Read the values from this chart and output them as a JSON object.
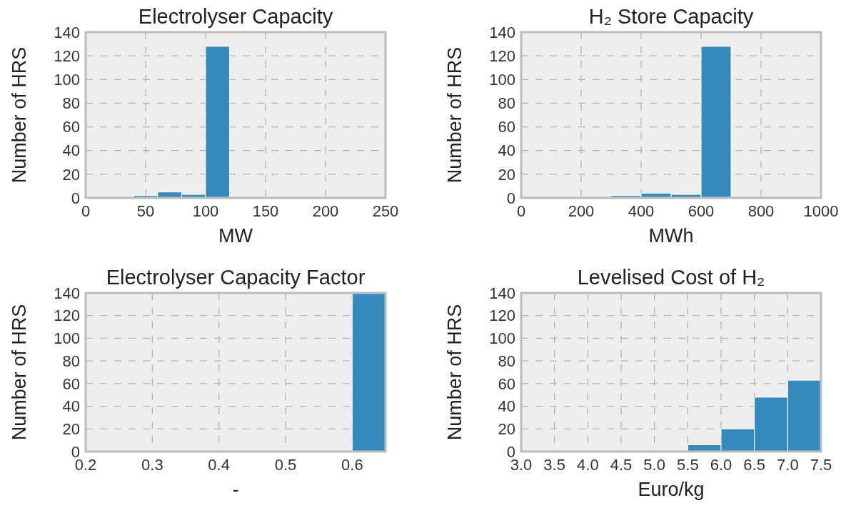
{
  "chart_data": [
    {
      "type": "histogram",
      "title": "Electrolyser Capacity",
      "xlabel": "MW",
      "ylabel": "Number of HRS",
      "bins": [
        40,
        60,
        80,
        100,
        120
      ],
      "values": [
        2,
        5,
        3,
        128
      ],
      "color": "#348abd",
      "xlim": [
        0,
        250
      ],
      "xticks": [
        0,
        50,
        100,
        150,
        200,
        250
      ],
      "ylim": [
        0,
        140
      ],
      "yticks": [
        0,
        20,
        40,
        60,
        80,
        100,
        120,
        140
      ],
      "grid": true
    },
    {
      "type": "histogram",
      "title": "H₂ Store Capacity",
      "xlabel": "MWh",
      "ylabel": "Number of HRS",
      "bins": [
        300,
        400,
        500,
        600,
        700
      ],
      "values": [
        2,
        4,
        3,
        128
      ],
      "color": "#348abd",
      "xlim": [
        0,
        1000
      ],
      "xticks": [
        0,
        200,
        400,
        600,
        800,
        1000
      ],
      "ylim": [
        0,
        140
      ],
      "yticks": [
        0,
        20,
        40,
        60,
        80,
        100,
        120,
        140
      ],
      "grid": true
    },
    {
      "type": "histogram",
      "title": "Electrolyser Capacity Factor",
      "xlabel": "-",
      "ylabel": "Number of HRS",
      "bins": [
        0.6,
        0.65
      ],
      "values": [
        140
      ],
      "color": "#348abd",
      "xlim": [
        0.2,
        0.65
      ],
      "xticks": [
        {
          "value": 0.2,
          "label": "0.2"
        },
        {
          "value": 0.3,
          "label": "0.3"
        },
        {
          "value": 0.4,
          "label": "0.4"
        },
        {
          "value": 0.5,
          "label": "0.5"
        },
        {
          "value": 0.6,
          "label": "0.6"
        }
      ],
      "ylim": [
        0,
        140
      ],
      "yticks": [
        0,
        20,
        40,
        60,
        80,
        100,
        120,
        140
      ],
      "grid": true
    },
    {
      "type": "histogram",
      "title": "Levelised Cost of H₂",
      "xlabel": "Euro/kg",
      "ylabel": "Number of HRS",
      "bins": [
        5.5,
        6.0,
        6.5,
        7.0,
        7.5
      ],
      "values": [
        6,
        20,
        48,
        63
      ],
      "color": "#348abd",
      "xlim": [
        3.0,
        7.5
      ],
      "xticks": [
        {
          "value": 3.0,
          "label": "3.0"
        },
        {
          "value": 3.5,
          "label": "3.5"
        },
        {
          "value": 4.0,
          "label": "4.0"
        },
        {
          "value": 4.5,
          "label": "4.5"
        },
        {
          "value": 5.0,
          "label": "5.0"
        },
        {
          "value": 5.5,
          "label": "5.5"
        },
        {
          "value": 6.0,
          "label": "6.0"
        },
        {
          "value": 6.5,
          "label": "6.5"
        },
        {
          "value": 7.0,
          "label": "7.0"
        },
        {
          "value": 7.5,
          "label": "7.5"
        }
      ],
      "ylim": [
        0,
        140
      ],
      "yticks": [
        0,
        20,
        40,
        60,
        80,
        100,
        120,
        140
      ],
      "grid": true
    }
  ]
}
